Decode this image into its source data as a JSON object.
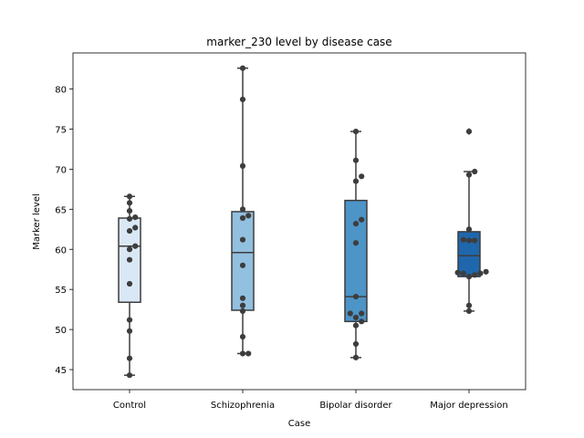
{
  "chart_data": {
    "type": "box",
    "title": "marker_230 level by disease case",
    "xlabel": "Case",
    "ylabel": "Marker level",
    "ylim": [
      42.5,
      84.5
    ],
    "yticks": [
      45,
      50,
      55,
      60,
      65,
      70,
      75,
      80
    ],
    "grid": false,
    "categories": [
      "Control",
      "Schizophrenia",
      "Bipolar disorder",
      "Major depression"
    ],
    "colors": [
      "#dae8f5",
      "#92c0df",
      "#4d94c7",
      "#1f67ac"
    ],
    "boxes": [
      {
        "category": "Control",
        "whisker_low": 44.3,
        "q1": 53.4,
        "median": 60.4,
        "q3": 63.9,
        "whisker_high": 66.6,
        "outliers": []
      },
      {
        "category": "Schizophrenia",
        "whisker_low": 47.0,
        "q1": 52.4,
        "median": 59.6,
        "q3": 64.7,
        "whisker_high": 82.6,
        "outliers": []
      },
      {
        "category": "Bipolar disorder",
        "whisker_low": 46.5,
        "q1": 51.0,
        "median": 54.1,
        "q3": 66.1,
        "whisker_high": 74.7,
        "outliers": []
      },
      {
        "category": "Major depression",
        "whisker_low": 52.3,
        "q1": 56.6,
        "median": 59.2,
        "q3": 62.2,
        "whisker_high": 69.7,
        "outliers": [
          74.7
        ]
      }
    ],
    "points": [
      [
        44.3,
        46.4,
        49.8,
        51.2,
        55.7,
        58.7,
        60.0,
        60.4,
        62.3,
        62.7,
        63.8,
        64.0,
        64.8,
        65.8,
        66.6
      ],
      [
        47.0,
        47.0,
        49.1,
        52.3,
        53.0,
        53.9,
        58.0,
        61.2,
        63.9,
        64.2,
        65.0,
        70.4,
        78.7,
        82.6
      ],
      [
        46.5,
        48.2,
        50.5,
        51.0,
        51.5,
        52.0,
        52.0,
        54.1,
        60.8,
        63.2,
        63.7,
        68.5,
        69.1,
        71.1,
        74.7
      ],
      [
        52.3,
        53.0,
        56.6,
        56.8,
        57.0,
        57.0,
        57.1,
        57.2,
        61.1,
        61.1,
        61.2,
        62.5,
        69.3,
        69.7,
        74.7
      ]
    ]
  }
}
